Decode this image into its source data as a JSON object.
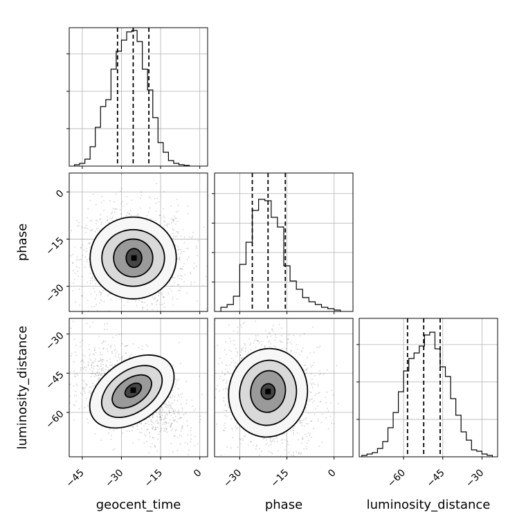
{
  "chart_data": {
    "type": "corner",
    "parameters": [
      "geocent_time",
      "phase",
      "luminosity_distance"
    ],
    "xlabels": [
      "geocent_time",
      "phase",
      "luminosity_distance"
    ],
    "ylabels": [
      "",
      "phase",
      "luminosity_distance"
    ],
    "grid": true,
    "panels": [
      {
        "kind": "hist1d",
        "param": "geocent_time",
        "xlim": [
          -50,
          3
        ],
        "ylim": [
          0,
          1.0
        ],
        "bin_edges": [
          -48,
          -46,
          -44,
          -42,
          -40,
          -38,
          -36,
          -34,
          -32,
          -30,
          -28,
          -26,
          -24,
          -22,
          -20,
          -18,
          -16,
          -14,
          -12,
          -10,
          -8,
          -6,
          -4
        ],
        "counts": [
          0.01,
          0.02,
          0.05,
          0.14,
          0.28,
          0.43,
          0.48,
          0.7,
          0.83,
          0.91,
          0.97,
          0.98,
          0.9,
          0.7,
          0.55,
          0.35,
          0.17,
          0.1,
          0.04,
          0.02,
          0.01,
          0.005
        ],
        "quantile_lines": [
          -31.5,
          -25.5,
          -19.5
        ]
      },
      {
        "kind": "hist1d",
        "param": "phase",
        "xlim": [
          -38,
          6
        ],
        "ylim": [
          0,
          1.0
        ],
        "bin_edges": [
          -36,
          -34,
          -32,
          -30,
          -28,
          -26,
          -24,
          -22,
          -20,
          -18,
          -16,
          -14,
          -12,
          -10,
          -8,
          -6,
          -4,
          -2,
          0,
          2
        ],
        "counts": [
          0.03,
          0.05,
          0.11,
          0.34,
          0.5,
          0.73,
          0.81,
          0.8,
          0.68,
          0.61,
          0.33,
          0.22,
          0.16,
          0.1,
          0.07,
          0.05,
          0.03,
          0.02,
          0.01
        ],
        "quantile_lines": [
          -26,
          -21,
          -15.5
        ]
      },
      {
        "kind": "hist1d",
        "param": "luminosity_distance",
        "xlim": [
          -77,
          -24
        ],
        "ylim": [
          0,
          1.0
        ],
        "bin_edges": [
          -76,
          -74,
          -72,
          -70,
          -68,
          -66,
          -64,
          -62,
          -60,
          -58,
          -56,
          -54,
          -52,
          -50,
          -48,
          -46,
          -44,
          -42,
          -40,
          -38,
          -36,
          -34,
          -32,
          -30,
          -28,
          -26
        ],
        "counts": [
          0.01,
          0.02,
          0.03,
          0.06,
          0.11,
          0.21,
          0.32,
          0.47,
          0.62,
          0.71,
          0.75,
          0.8,
          0.88,
          0.9,
          0.78,
          0.65,
          0.58,
          0.42,
          0.3,
          0.18,
          0.12,
          0.05,
          0.04,
          0.02,
          0.01
        ],
        "quantile_lines": [
          -58.5,
          -52.3,
          -46.0
        ]
      },
      {
        "kind": "hist2d",
        "x": "geocent_time",
        "y": "phase",
        "xlim": [
          -50,
          3
        ],
        "ylim": [
          -38,
          6
        ],
        "ellipses": [
          {
            "cx": -25.5,
            "cy": -21.0,
            "rx": 16.5,
            "ry": 13.0,
            "rot": 0
          },
          {
            "cx": -25.5,
            "cy": -21.0,
            "rx": 12.0,
            "ry": 9.0,
            "rot": 0
          },
          {
            "cx": -25.5,
            "cy": -21.0,
            "rx": 7.5,
            "ry": 6.0,
            "rot": 0
          },
          {
            "cx": -25.2,
            "cy": -21.0,
            "rx": 3.0,
            "ry": 3.0,
            "rot": 0
          }
        ],
        "peak": [
          -25.2,
          -21.0
        ]
      },
      {
        "kind": "hist2d",
        "x": "geocent_time",
        "y": "luminosity_distance",
        "xlim": [
          -50,
          3
        ],
        "ylim": [
          -77,
          -24
        ],
        "ellipses": [
          {
            "cx": -26.0,
            "cy": -52.0,
            "rx": 18.0,
            "ry": 11.5,
            "rot": -35
          },
          {
            "cx": -26.0,
            "cy": -52.0,
            "rx": 13.0,
            "ry": 8.0,
            "rot": -35
          },
          {
            "cx": -26.0,
            "cy": -52.0,
            "rx": 8.5,
            "ry": 5.0,
            "rot": -35
          },
          {
            "cx": -25.5,
            "cy": -51.5,
            "rx": 3.5,
            "ry": 2.2,
            "rot": -35
          }
        ],
        "peak": [
          -25.5,
          -51.5
        ]
      },
      {
        "kind": "hist2d",
        "x": "phase",
        "y": "luminosity_distance",
        "xlim": [
          -38,
          6
        ],
        "ylim": [
          -77,
          -24
        ],
        "ellipses": [
          {
            "cx": -21.0,
            "cy": -52.5,
            "rx": 12.5,
            "ry": 17.0,
            "rot": 10
          },
          {
            "cx": -21.0,
            "cy": -52.5,
            "rx": 9.0,
            "ry": 12.5,
            "rot": 10
          },
          {
            "cx": -21.0,
            "cy": -52.0,
            "rx": 5.5,
            "ry": 8.0,
            "rot": 10
          },
          {
            "cx": -21.0,
            "cy": -52.0,
            "rx": 2.2,
            "ry": 3.0,
            "rot": 10
          }
        ],
        "peak": [
          -21.0,
          -52.0
        ]
      }
    ],
    "ticks": {
      "geocent_time": [
        -45,
        -30,
        -15,
        0
      ],
      "phase": [
        -30,
        -15,
        0
      ],
      "luminosity_distance": [
        -60,
        -45,
        -30
      ]
    },
    "tick_labels": {
      "geocent_time": [
        "−45",
        "−30",
        "−15",
        "0"
      ],
      "phase": [
        "−30",
        "−15",
        "0"
      ],
      "luminosity_distance": [
        "−60",
        "−45",
        "−30"
      ]
    },
    "colors": {
      "line": "#000000",
      "grid": "#b0b0b0",
      "points": "#000000"
    }
  }
}
